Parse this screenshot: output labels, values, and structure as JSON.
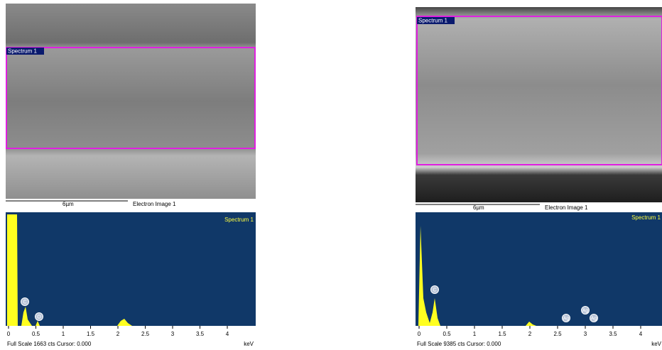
{
  "panels": [
    {
      "image_label": "Spectrum 1",
      "scale_bar": "6µm",
      "image_caption": "Electron Image 1",
      "spectrum_label": "Spectrum 1",
      "ticks": [
        "0",
        "0.5",
        "1",
        "1.5",
        "2",
        "2.5",
        "3",
        "3.5",
        "4"
      ],
      "peaks": [
        "C",
        "O"
      ],
      "footer": "Full Scale 1663 cts Cursor: 0.000",
      "unit": "keV"
    },
    {
      "image_label": "Spectrum 1",
      "scale_bar": "6µm",
      "image_caption": "Electron Image 1",
      "spectrum_label": "Spectrum 1",
      "ticks": [
        "0",
        "0.5",
        "1",
        "1.5",
        "2",
        "2.5",
        "3",
        "3.5",
        "4"
      ],
      "peaks": [
        "C",
        "Ag",
        "Ag",
        "Ag"
      ],
      "footer": "Full Scale 9385 cts Cursor: 0.000",
      "unit": "keV"
    }
  ]
}
